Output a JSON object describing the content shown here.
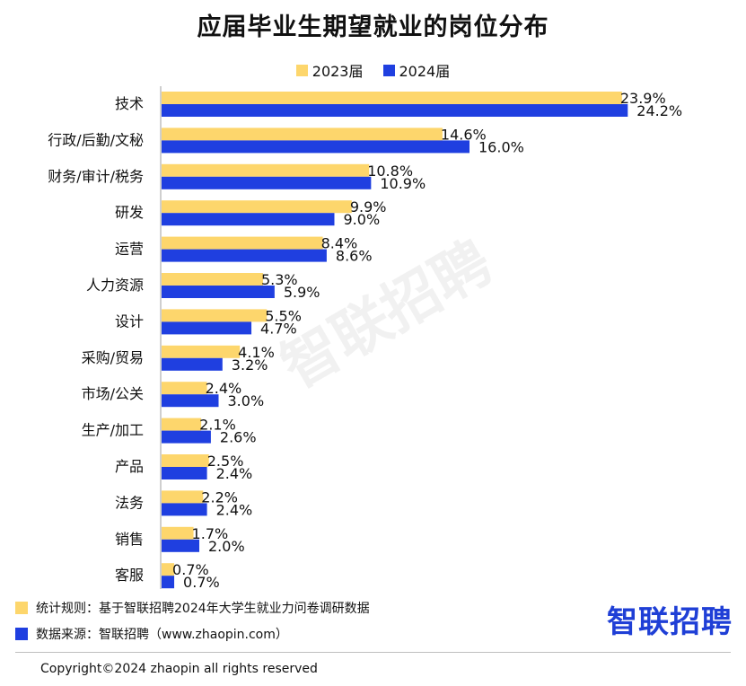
{
  "colors": {
    "y2023": "#FDD66C",
    "y2024": "#1F3FE0",
    "axis": "#cfcfcf",
    "brand": "#1F3FD6"
  },
  "chart_data": {
    "type": "bar",
    "orientation": "horizontal",
    "title": "应届毕业生期望就业的岗位分布",
    "categories": [
      "技术",
      "行政/后勤/文秘",
      "财务/审计/税务",
      "研发",
      "运营",
      "人力资源",
      "设计",
      "采购/贸易",
      "市场/公关",
      "生产/加工",
      "产品",
      "法务",
      "销售",
      "客服"
    ],
    "series": [
      {
        "name": "2023届",
        "values": [
          23.9,
          14.6,
          10.8,
          9.9,
          8.4,
          5.3,
          5.5,
          4.1,
          2.4,
          2.1,
          2.5,
          2.2,
          1.7,
          0.7
        ]
      },
      {
        "name": "2024届",
        "values": [
          24.2,
          16.0,
          10.9,
          9.0,
          8.6,
          5.9,
          4.7,
          3.2,
          3.0,
          2.6,
          2.4,
          2.4,
          2.0,
          0.7
        ]
      }
    ],
    "value_suffix": "%",
    "legend": "top-center",
    "grid": false
  },
  "watermark": "智联招聘",
  "notes": {
    "rule": "统计规则：基于智联招聘2024年大学生就业力问卷调研数据",
    "source": "数据来源：智联招聘（www.zhaopin.com）"
  },
  "brand": "智联招聘",
  "copyright": "Copyright©2024 zhaopin all rights reserved"
}
